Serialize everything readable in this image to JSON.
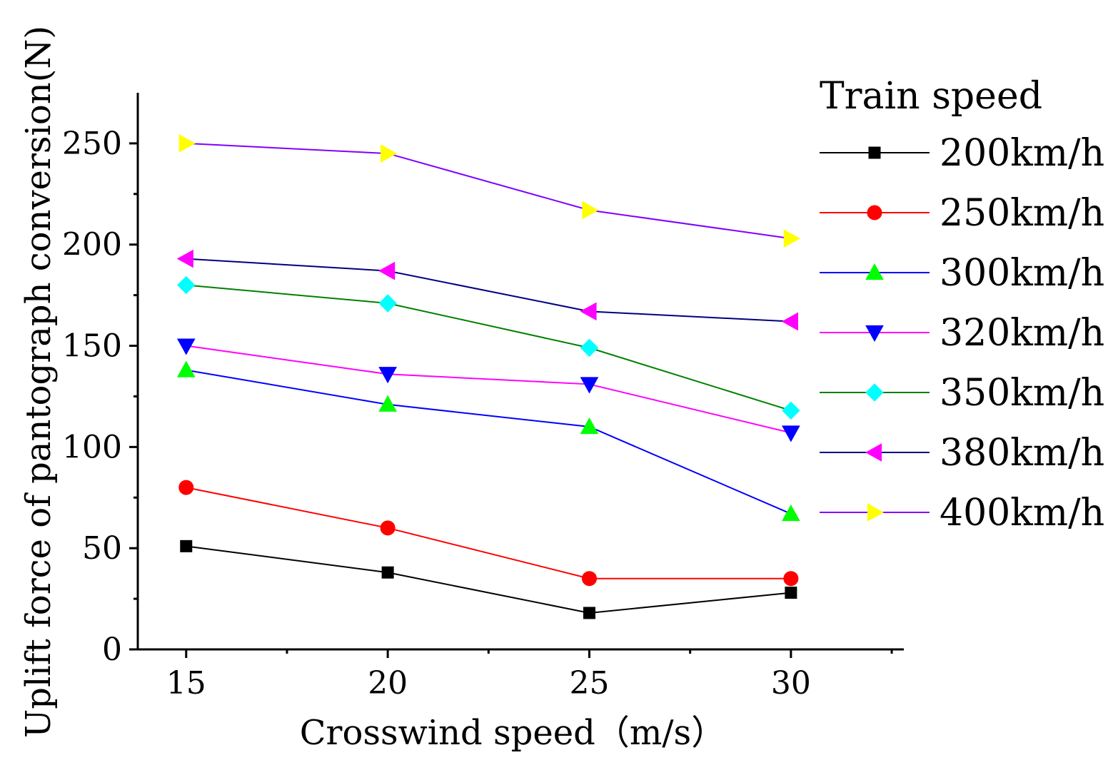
{
  "chart_data": {
    "type": "line",
    "title": "",
    "xlabel": "Crosswind speed（m/s）",
    "ylabel": "Uplift force of pantograph conversion(N)",
    "x": [
      15,
      20,
      25,
      30
    ],
    "xlim": [
      13.8,
      32.8
    ],
    "ylim": [
      0,
      275
    ],
    "x_ticks": [
      15,
      20,
      25,
      30
    ],
    "y_ticks": [
      0,
      50,
      100,
      150,
      200,
      250
    ],
    "legend_title": "Train speed",
    "legend_position": "right",
    "series": [
      {
        "name": "200km/h",
        "line_color": "#000000",
        "marker": "square",
        "marker_color": "#000000",
        "values": [
          51,
          38,
          18,
          28
        ]
      },
      {
        "name": "250km/h",
        "line_color": "#ff0000",
        "marker": "circle",
        "marker_color": "#ff0000",
        "values": [
          80,
          60,
          35,
          35
        ]
      },
      {
        "name": "300km/h",
        "line_color": "#0000ff",
        "marker": "triangle-up",
        "marker_color": "#00ff00",
        "values": [
          138,
          121,
          110,
          67
        ]
      },
      {
        "name": "320km/h",
        "line_color": "#ff00ff",
        "marker": "triangle-down",
        "marker_color": "#0000ff",
        "values": [
          150,
          136,
          131,
          107
        ]
      },
      {
        "name": "350km/h",
        "line_color": "#008000",
        "marker": "diamond",
        "marker_color": "#00ffff",
        "values": [
          180,
          171,
          149,
          118
        ]
      },
      {
        "name": "380km/h",
        "line_color": "#000080",
        "marker": "triangle-left",
        "marker_color": "#ff00ff",
        "values": [
          193,
          187,
          167,
          162
        ]
      },
      {
        "name": "400km/h",
        "line_color": "#8000ff",
        "marker": "triangle-right",
        "marker_color": "#ffff00",
        "values": [
          250,
          245,
          217,
          203
        ]
      }
    ]
  }
}
